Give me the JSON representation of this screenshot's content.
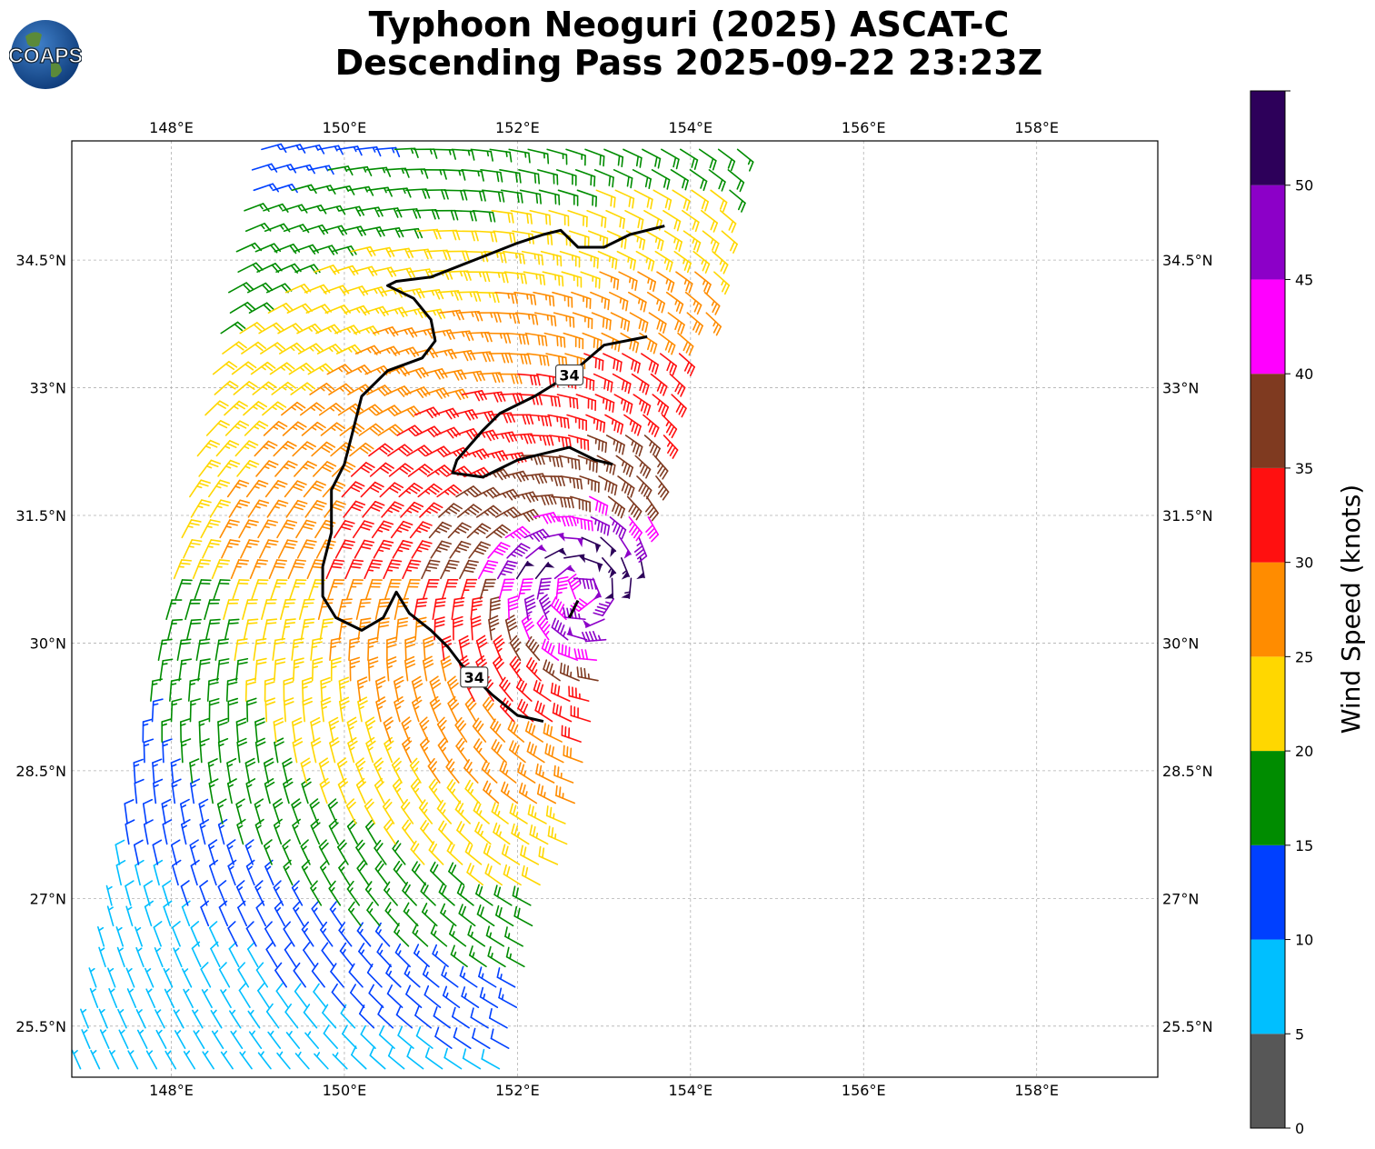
{
  "title": {
    "line1": "Typhoon Neoguri (2025) ASCAT-C",
    "line2": "Descending Pass 2025-09-22 23:23Z"
  },
  "logo": {
    "text": "COAPS",
    "icon": "globe-logo-icon"
  },
  "map": {
    "lon_range": [
      146.85,
      159.4
    ],
    "lat_range": [
      24.9,
      35.9
    ],
    "lon_ticks": [
      {
        "value": 148,
        "label": "148°E"
      },
      {
        "value": 150,
        "label": "150°E"
      },
      {
        "value": 152,
        "label": "152°E"
      },
      {
        "value": 154,
        "label": "154°E"
      },
      {
        "value": 156,
        "label": "156°E"
      },
      {
        "value": 158,
        "label": "158°E"
      }
    ],
    "lat_ticks": [
      {
        "value": 25.5,
        "label": "25.5°N"
      },
      {
        "value": 27,
        "label": "27°N"
      },
      {
        "value": 28.5,
        "label": "28.5°N"
      },
      {
        "value": 30,
        "label": "30°N"
      },
      {
        "value": 31.5,
        "label": "31.5°N"
      },
      {
        "value": 33,
        "label": "33°N"
      },
      {
        "value": 34.5,
        "label": "34.5°N"
      }
    ],
    "gridlines": true,
    "storm_center": {
      "lon": 152.7,
      "lat": 30.6
    },
    "contour": {
      "level_label": "34",
      "label_positions": [
        {
          "lon": 152.6,
          "lat": 33.15
        },
        {
          "lon": 151.5,
          "lat": 29.6
        }
      ]
    }
  },
  "colorbar": {
    "title": "Wind Speed (knots)",
    "bounds": [
      0,
      5,
      10,
      15,
      20,
      25,
      30,
      35,
      40,
      45,
      50,
      55
    ],
    "tick_labels": [
      "0",
      "5",
      "10",
      "15",
      "20",
      "25",
      "30",
      "35",
      "40",
      "45",
      "50"
    ],
    "colors": [
      "#575757",
      "#00bfff",
      "#0040ff",
      "#008c00",
      "#ffd700",
      "#ff8c00",
      "#ff1010",
      "#7f3a20",
      "#ff00ff",
      "#8c00c8",
      "#2d005a"
    ]
  }
}
